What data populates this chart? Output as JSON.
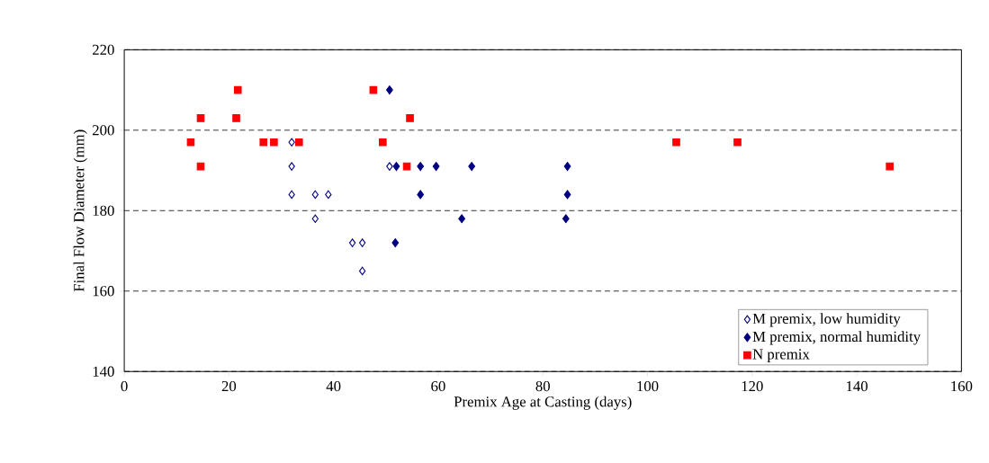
{
  "chart_data": {
    "type": "scatter",
    "xlabel": "Premix Age at Casting (days)",
    "ylabel": "Final Flow Diameter (mm)",
    "xlim": [
      0,
      160
    ],
    "xticks": [
      0,
      20,
      40,
      60,
      80,
      100,
      120,
      140,
      160
    ],
    "ylim": [
      140,
      220
    ],
    "yticks": [
      140,
      160,
      180,
      200,
      220
    ],
    "grid": "y",
    "legend": "bottom right",
    "series": [
      {
        "name": "M premix, low humidity",
        "color": "#000080",
        "marker": "diamond open",
        "x": [
          32,
          32,
          32,
          36.5,
          36.5,
          39,
          43.6,
          45.5,
          45.5,
          50.7
        ],
        "values": [
          197,
          191,
          184,
          184,
          178,
          184,
          172,
          172,
          165,
          191
        ]
      },
      {
        "name": "M premix, normal humidity",
        "color": "#000080",
        "marker": "diamond",
        "x": [
          50.7,
          51.8,
          52,
          56.6,
          56.6,
          59.6,
          64.5,
          66.4,
          84.7,
          84.7,
          84.4
        ],
        "values": [
          210,
          172,
          191,
          191,
          184,
          191,
          178,
          191,
          191,
          184,
          178
        ]
      },
      {
        "name": "N premix",
        "color": "#ff0000",
        "marker": "square",
        "x": [
          12.7,
          14.6,
          14.6,
          21.7,
          21.4,
          26.6,
          28.6,
          33.4,
          47.6,
          49.4,
          54.6,
          54,
          105.5,
          117.2,
          146.3
        ],
        "values": [
          197,
          203,
          191,
          210,
          203,
          197,
          197,
          197,
          210,
          197,
          203,
          191,
          197,
          197,
          191
        ]
      }
    ]
  }
}
